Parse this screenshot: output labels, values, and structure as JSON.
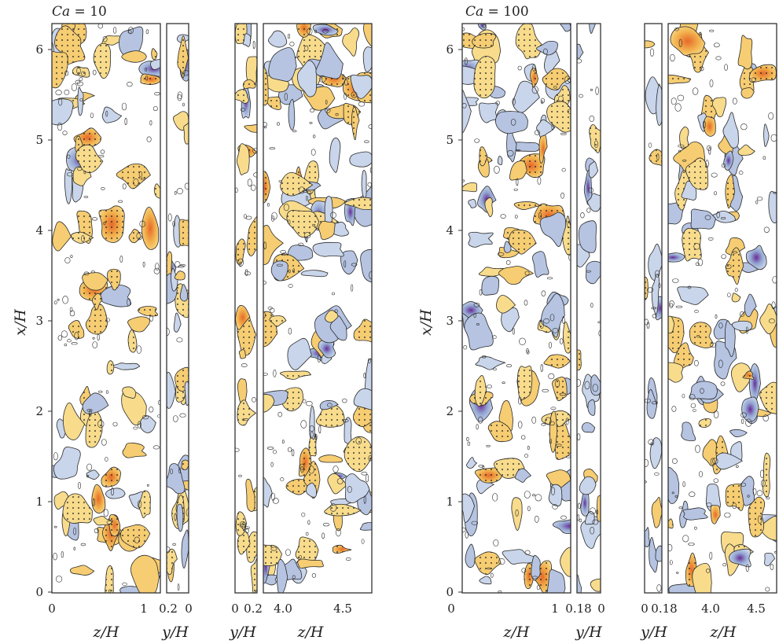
{
  "figure": {
    "groups": [
      {
        "id": "ca10",
        "case_label": {
          "symbol": "Ca",
          "value": " = 10"
        },
        "y_axis_label": "x/H",
        "y_ticks": [
          "0",
          "1",
          "2",
          "3",
          "4",
          "5",
          "6"
        ],
        "panels": [
          {
            "id": "z-near",
            "x_ticks": [
              "0",
              "1"
            ],
            "x_label": "z/H",
            "fill": {
              "warm": 0.3,
              "cool": 0.1
            }
          },
          {
            "id": "y-near",
            "x_ticks": [
              "0.2",
              "0"
            ],
            "x_label": "y/H",
            "fill": {
              "warm": 0.35,
              "cool": 0.4
            }
          },
          {
            "id": "y-far",
            "x_ticks": [
              "0",
              "0.2"
            ],
            "x_label": "y/H",
            "fill": {
              "warm": 0.4,
              "cool": 0.1
            }
          },
          {
            "id": "z-far",
            "x_ticks": [
              "4.0",
              "4.5"
            ],
            "x_label": "z/H",
            "fill": {
              "warm": 0.28,
              "cool": 0.3
            }
          }
        ]
      },
      {
        "id": "ca100",
        "case_label": {
          "symbol": "Ca",
          "value": " = 100"
        },
        "y_axis_label": "x/H",
        "y_ticks": [
          "0",
          "1",
          "2",
          "3",
          "4",
          "5",
          "6"
        ],
        "panels": [
          {
            "id": "z-near",
            "x_ticks": [
              "0",
              "1"
            ],
            "x_label": "z/H",
            "fill": {
              "warm": 0.28,
              "cool": 0.25
            }
          },
          {
            "id": "y-near",
            "x_ticks": [
              "0.18",
              "0"
            ],
            "x_label": "y/H",
            "fill": {
              "warm": 0.2,
              "cool": 0.45
            }
          },
          {
            "id": "y-far",
            "x_ticks": [
              "0",
              "0.18"
            ],
            "x_label": "y/H",
            "fill": {
              "warm": 0.2,
              "cool": 0.25
            }
          },
          {
            "id": "z-far",
            "x_ticks": [
              "4.0",
              "4.5"
            ],
            "x_label": "z/H",
            "fill": {
              "warm": 0.25,
              "cool": 0.3
            }
          }
        ]
      }
    ],
    "colors": {
      "warm_light": "#f8dc8c",
      "warm_mid": "#f2b24e",
      "warm_dark": "#e0521f",
      "cool_light": "#c9d5ea",
      "cool_mid": "#93a6d2",
      "cool_dark": "#6a2c96",
      "contour": "#2b2b2b"
    }
  }
}
